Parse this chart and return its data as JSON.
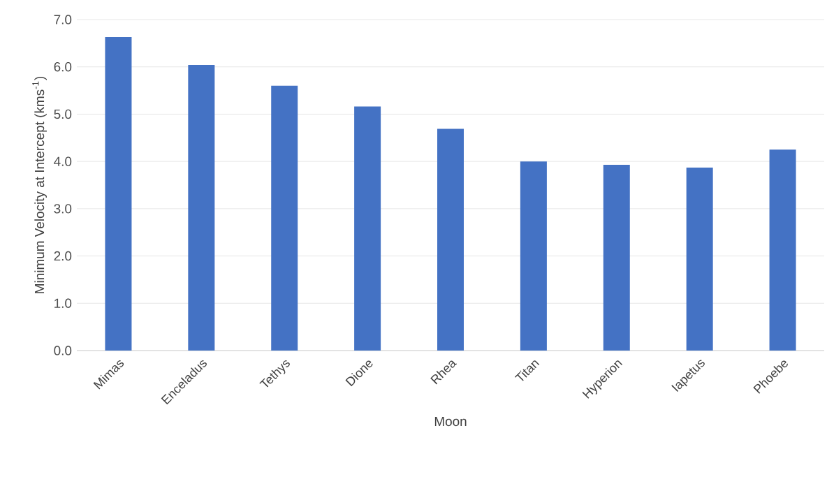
{
  "chart_data": {
    "type": "bar",
    "xlabel": "Moon",
    "ylabel": "Minimum Velocity at Intercept (kms$^{-1}$)",
    "categories": [
      "Mimas",
      "Enceladus",
      "Tethys",
      "Dione",
      "Rhea",
      "Titan",
      "Hyperion",
      "Iapetus",
      "Phoebe"
    ],
    "values": [
      6.63,
      6.04,
      5.6,
      5.16,
      4.69,
      4.0,
      3.93,
      3.87,
      4.25
    ],
    "color": "#4472c4",
    "ylim": [
      0,
      7
    ],
    "yticks": [
      {
        "value": 0,
        "label": "0.0"
      },
      {
        "value": 1,
        "label": "1.0"
      },
      {
        "value": 2,
        "label": "2.0"
      },
      {
        "value": 3,
        "label": "3.0"
      },
      {
        "value": 4,
        "label": "4.0"
      },
      {
        "value": 5,
        "label": "5.0"
      },
      {
        "value": 6,
        "label": "6.0"
      },
      {
        "value": 7,
        "label": "7.0"
      }
    ],
    "grid": "y"
  }
}
